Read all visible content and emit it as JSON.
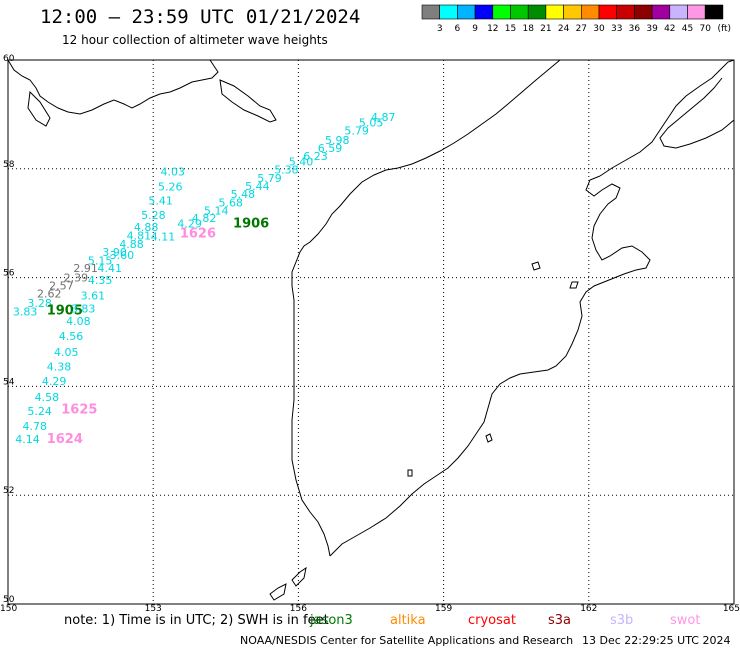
{
  "header": {
    "title": "12:00 — 23:59 UTC 01/21/2024",
    "subtitle": "12 hour collection of altimeter wave heights"
  },
  "legend": {
    "unit": "(ft)",
    "bins": [
      {
        "label": "3",
        "color": "#7f7f7f"
      },
      {
        "label": "6",
        "color": "#00ffff"
      },
      {
        "label": "9",
        "color": "#00b4ff"
      },
      {
        "label": "12",
        "color": "#0000ff"
      },
      {
        "label": "15",
        "color": "#00ff00"
      },
      {
        "label": "18",
        "color": "#00c800"
      },
      {
        "label": "21",
        "color": "#008c00"
      },
      {
        "label": "24",
        "color": "#ffff00"
      },
      {
        "label": "27",
        "color": "#ffc800"
      },
      {
        "label": "30",
        "color": "#ff8c00"
      },
      {
        "label": "33",
        "color": "#ff0000"
      },
      {
        "label": "36",
        "color": "#c80000"
      },
      {
        "label": "39",
        "color": "#8c0000"
      },
      {
        "label": "42",
        "color": "#a000a0"
      },
      {
        "label": "45",
        "color": "#c8b4ff"
      },
      {
        "label": "70",
        "color": "#ff96e6"
      },
      {
        "label": "",
        "color": "#000000"
      }
    ]
  },
  "map": {
    "lon_range": [
      150,
      165
    ],
    "lat_range": [
      50,
      60
    ],
    "lon_ticks": [
      "150",
      "153",
      "156",
      "159",
      "162",
      "165"
    ],
    "lat_ticks": [
      "60",
      "58",
      "56",
      "54",
      "52",
      "50"
    ]
  },
  "colors": {
    "cyan": "#00d8e0",
    "gray": "#707070",
    "green": "#007800",
    "pink": "#ff8ce0"
  },
  "track_labels": [
    {
      "t": "4.87",
      "lon": 157.5,
      "lat": 58.88,
      "c": "cyan"
    },
    {
      "t": "5.05",
      "lon": 157.25,
      "lat": 58.78,
      "c": "cyan"
    },
    {
      "t": "5.79",
      "lon": 156.95,
      "lat": 58.63,
      "c": "cyan"
    },
    {
      "t": "5.98",
      "lon": 156.55,
      "lat": 58.46,
      "c": "cyan"
    },
    {
      "t": "6.59",
      "lon": 156.4,
      "lat": 58.31,
      "c": "cyan"
    },
    {
      "t": "6.23",
      "lon": 156.1,
      "lat": 58.16,
      "c": "cyan"
    },
    {
      "t": "5.40",
      "lon": 155.8,
      "lat": 58.06,
      "c": "cyan"
    },
    {
      "t": "5.38",
      "lon": 155.5,
      "lat": 57.91,
      "c": "cyan"
    },
    {
      "t": "5.79",
      "lon": 155.15,
      "lat": 57.76,
      "c": "cyan"
    },
    {
      "t": "5.44",
      "lon": 154.9,
      "lat": 57.61,
      "c": "cyan"
    },
    {
      "t": "5.48",
      "lon": 154.6,
      "lat": 57.46,
      "c": "cyan"
    },
    {
      "t": "5.68",
      "lon": 154.35,
      "lat": 57.31,
      "c": "cyan"
    },
    {
      "t": "5.14",
      "lon": 154.05,
      "lat": 57.16,
      "c": "cyan"
    },
    {
      "t": "4.82",
      "lon": 153.8,
      "lat": 57.02,
      "c": "cyan"
    },
    {
      "t": "1906",
      "lon": 154.65,
      "lat": 56.92,
      "c": "green"
    },
    {
      "t": "4.29",
      "lon": 153.5,
      "lat": 56.92,
      "c": "cyan"
    },
    {
      "t": "1626",
      "lon": 153.55,
      "lat": 56.74,
      "c": "pink"
    },
    {
      "t": "4.11",
      "lon": 152.95,
      "lat": 56.68,
      "c": "cyan"
    },
    {
      "t": "4.03",
      "lon": 153.15,
      "lat": 57.88,
      "c": "cyan"
    },
    {
      "t": "5.26",
      "lon": 153.1,
      "lat": 57.6,
      "c": "cyan"
    },
    {
      "t": "5.41",
      "lon": 152.9,
      "lat": 57.34,
      "c": "cyan"
    },
    {
      "t": "5.28",
      "lon": 152.75,
      "lat": 57.08,
      "c": "cyan"
    },
    {
      "t": "4.88",
      "lon": 152.6,
      "lat": 56.86,
      "c": "cyan"
    },
    {
      "t": "4.81",
      "lon": 152.45,
      "lat": 56.7,
      "c": "cyan"
    },
    {
      "t": "4.88",
      "lon": 152.3,
      "lat": 56.54,
      "c": "cyan"
    },
    {
      "t": "3.90",
      "lon": 151.95,
      "lat": 56.4,
      "c": "cyan"
    },
    {
      "t": "3.60",
      "lon": 152.1,
      "lat": 56.34,
      "c": "cyan"
    },
    {
      "t": "5.15",
      "lon": 151.65,
      "lat": 56.24,
      "c": "cyan"
    },
    {
      "t": "4.41",
      "lon": 151.85,
      "lat": 56.1,
      "c": "cyan"
    },
    {
      "t": "2.91",
      "lon": 151.35,
      "lat": 56.1,
      "c": "gray"
    },
    {
      "t": "2.39",
      "lon": 151.15,
      "lat": 55.93,
      "c": "gray"
    },
    {
      "t": "4.35",
      "lon": 151.65,
      "lat": 55.88,
      "c": "cyan"
    },
    {
      "t": "2.57",
      "lon": 150.85,
      "lat": 55.78,
      "c": "gray"
    },
    {
      "t": "2.62",
      "lon": 150.6,
      "lat": 55.63,
      "c": "gray"
    },
    {
      "t": "3.61",
      "lon": 151.5,
      "lat": 55.6,
      "c": "cyan"
    },
    {
      "t": "3.28",
      "lon": 150.4,
      "lat": 55.46,
      "c": "cyan"
    },
    {
      "t": "1905",
      "lon": 150.8,
      "lat": 55.32,
      "c": "green"
    },
    {
      "t": "3.83",
      "lon": 151.3,
      "lat": 55.36,
      "c": "cyan"
    },
    {
      "t": "3.83",
      "lon": 150.1,
      "lat": 55.3,
      "c": "cyan"
    },
    {
      "t": "4.08",
      "lon": 151.2,
      "lat": 55.13,
      "c": "cyan"
    },
    {
      "t": "4.56",
      "lon": 151.05,
      "lat": 54.85,
      "c": "cyan"
    },
    {
      "t": "4.05",
      "lon": 150.95,
      "lat": 54.56,
      "c": "cyan"
    },
    {
      "t": "4.38",
      "lon": 150.8,
      "lat": 54.29,
      "c": "cyan"
    },
    {
      "t": "4.29",
      "lon": 150.7,
      "lat": 54.03,
      "c": "cyan"
    },
    {
      "t": "4.58",
      "lon": 150.55,
      "lat": 53.73,
      "c": "cyan"
    },
    {
      "t": "1625",
      "lon": 151.1,
      "lat": 53.5,
      "c": "pink"
    },
    {
      "t": "5.24",
      "lon": 150.4,
      "lat": 53.47,
      "c": "cyan"
    },
    {
      "t": "4.78",
      "lon": 150.3,
      "lat": 53.2,
      "c": "cyan"
    },
    {
      "t": "4.14",
      "lon": 150.15,
      "lat": 52.96,
      "c": "cyan"
    },
    {
      "t": "1624",
      "lon": 150.8,
      "lat": 52.96,
      "c": "pink"
    }
  ],
  "footer": {
    "note": "note: 1) Time is in UTC; 2) SWH is in feet",
    "satellites": [
      {
        "name": "jason3",
        "color": "#007800"
      },
      {
        "name": "altika",
        "color": "#ff8c00"
      },
      {
        "name": "cryosat",
        "color": "#ff0000"
      },
      {
        "name": "s3a",
        "color": "#8c0000"
      },
      {
        "name": "s3b",
        "color": "#c8b4ff"
      },
      {
        "name": "swot",
        "color": "#ff96e6"
      }
    ],
    "credit": "NOAA/NESDIS Center for Satellite Applications and Research",
    "timestamp": "13 Dec 22:29:25 UTC 2024"
  }
}
